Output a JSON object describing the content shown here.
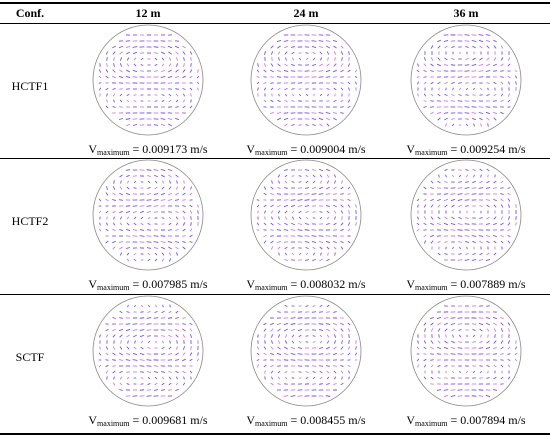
{
  "table": {
    "header": [
      "Conf.",
      "12 m",
      "24 m",
      "36 m"
    ],
    "rows": [
      {
        "label": "HCTF1",
        "cells": [
          {
            "symbol": "V",
            "subscript": "maximum",
            "value": "= 0.009173 m/s"
          },
          {
            "symbol": "V",
            "subscript": "maximum",
            "value": "= 0.009004 m/s"
          },
          {
            "symbol": "V",
            "subscript": "maximum",
            "value": "= 0.009254 m/s"
          }
        ]
      },
      {
        "label": "HCTF2",
        "cells": [
          {
            "symbol": "V",
            "subscript": "maximum",
            "value": "= 0.007985 m/s"
          },
          {
            "symbol": "V",
            "subscript": "maximum",
            "value": "= 0.008032 m/s"
          },
          {
            "symbol": "V",
            "subscript": "maximum",
            "value": "= 0.007889 m/s"
          }
        ]
      },
      {
        "label": "SCTF",
        "cells": [
          {
            "symbol": "V",
            "subscript": "maximum",
            "value": "= 0.009681 m/s"
          },
          {
            "symbol": "V",
            "subscript": "maximum",
            "value": "= 0.008455 m/s"
          },
          {
            "symbol": "V",
            "subscript": "maximum",
            "value": "= 0.007894 m/s"
          }
        ]
      }
    ]
  }
}
